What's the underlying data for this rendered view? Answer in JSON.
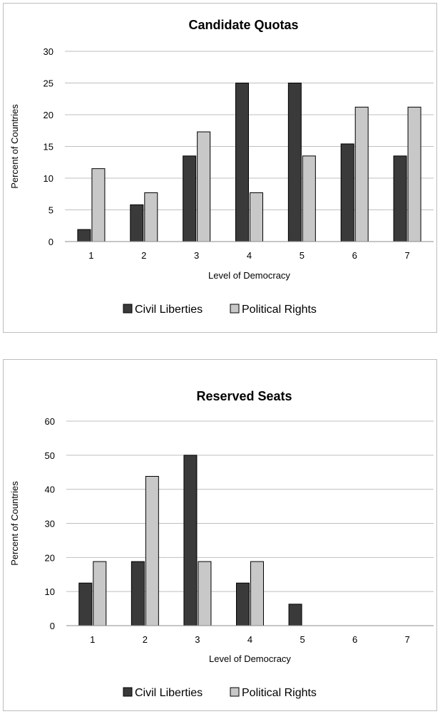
{
  "chart_data": [
    {
      "type": "bar",
      "title": "Candidate Quotas",
      "xlabel": "Level of Democracy",
      "ylabel": "Percent of Countries",
      "categories": [
        "1",
        "2",
        "3",
        "4",
        "5",
        "6",
        "7"
      ],
      "ylim": [
        0,
        30
      ],
      "yticks": [
        "0",
        "5",
        "10",
        "15",
        "20",
        "25",
        "30"
      ],
      "grid": true,
      "legend": "bottom",
      "series": [
        {
          "name": "Civil Liberties",
          "color": "#3a3a3a",
          "values": [
            1.9,
            5.8,
            13.5,
            25,
            25,
            15.4,
            13.5
          ]
        },
        {
          "name": "Political Rights",
          "color": "#c8c8c8",
          "values": [
            11.5,
            7.7,
            17.3,
            7.7,
            13.5,
            21.2,
            21.2
          ]
        }
      ]
    },
    {
      "type": "bar",
      "title": "Reserved Seats",
      "xlabel": "Level of Democracy",
      "ylabel": "Percent of Countries",
      "categories": [
        "1",
        "2",
        "3",
        "4",
        "5",
        "6",
        "7"
      ],
      "ylim": [
        0,
        60
      ],
      "yticks": [
        "0",
        "10",
        "20",
        "30",
        "40",
        "50",
        "60"
      ],
      "grid": true,
      "legend": "bottom",
      "series": [
        {
          "name": "Civil Liberties",
          "color": "#3a3a3a",
          "values": [
            12.5,
            18.8,
            50,
            12.5,
            6.3,
            0,
            0
          ]
        },
        {
          "name": "Political Rights",
          "color": "#c8c8c8",
          "values": [
            18.8,
            43.8,
            18.8,
            18.8,
            0,
            0,
            0
          ]
        }
      ]
    }
  ]
}
